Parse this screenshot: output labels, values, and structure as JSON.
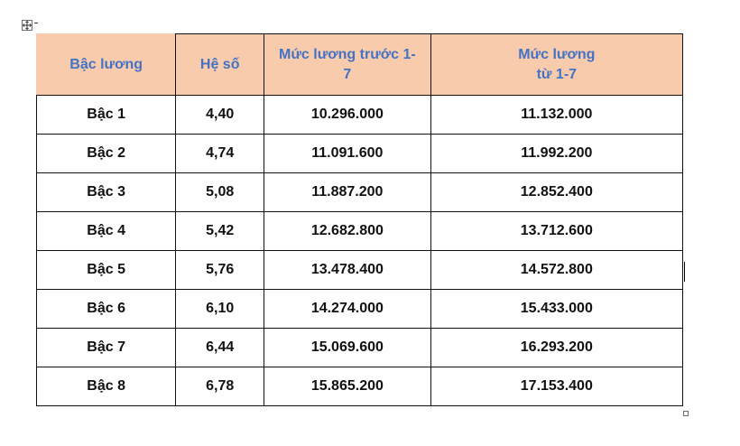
{
  "table": {
    "headers": [
      "Bậc lương",
      "Hệ số",
      "Mức lương trước 1-7",
      "Mức lương từ 1-7"
    ],
    "header_lines": {
      "col3_line1": "Mức lương trước 1-",
      "col3_line2": "7",
      "col4_line1": "Mức lương",
      "col4_line2": "từ 1-7"
    },
    "rows": [
      [
        "Bậc 1",
        "4,40",
        "10.296.000",
        "11.132.000"
      ],
      [
        "Bậc 2",
        "4,74",
        "11.091.600",
        "11.992.200"
      ],
      [
        "Bậc 3",
        "5,08",
        "11.887.200",
        "12.852.400"
      ],
      [
        "Bậc 4",
        "5,42",
        "12.682.800",
        "13.712.600"
      ],
      [
        "Bậc 5",
        "5,76",
        "13.478.400",
        "14.572.800"
      ],
      [
        "Bậc 6",
        "6,10",
        "14.274.000",
        "15.433.000"
      ],
      [
        "Bậc 7",
        "6,44",
        "15.069.600",
        "16.293.200"
      ],
      [
        "Bậc 8",
        "6,78",
        "15.865.200",
        "17.153.400"
      ]
    ]
  },
  "colors": {
    "header_bg": "#f8cbad",
    "header_text": "#4472c4",
    "body_text": "#111111",
    "border": "#111111"
  },
  "icons": {
    "move_handle": "table-move-handle-icon",
    "resize_handle": "table-resize-handle-icon"
  }
}
